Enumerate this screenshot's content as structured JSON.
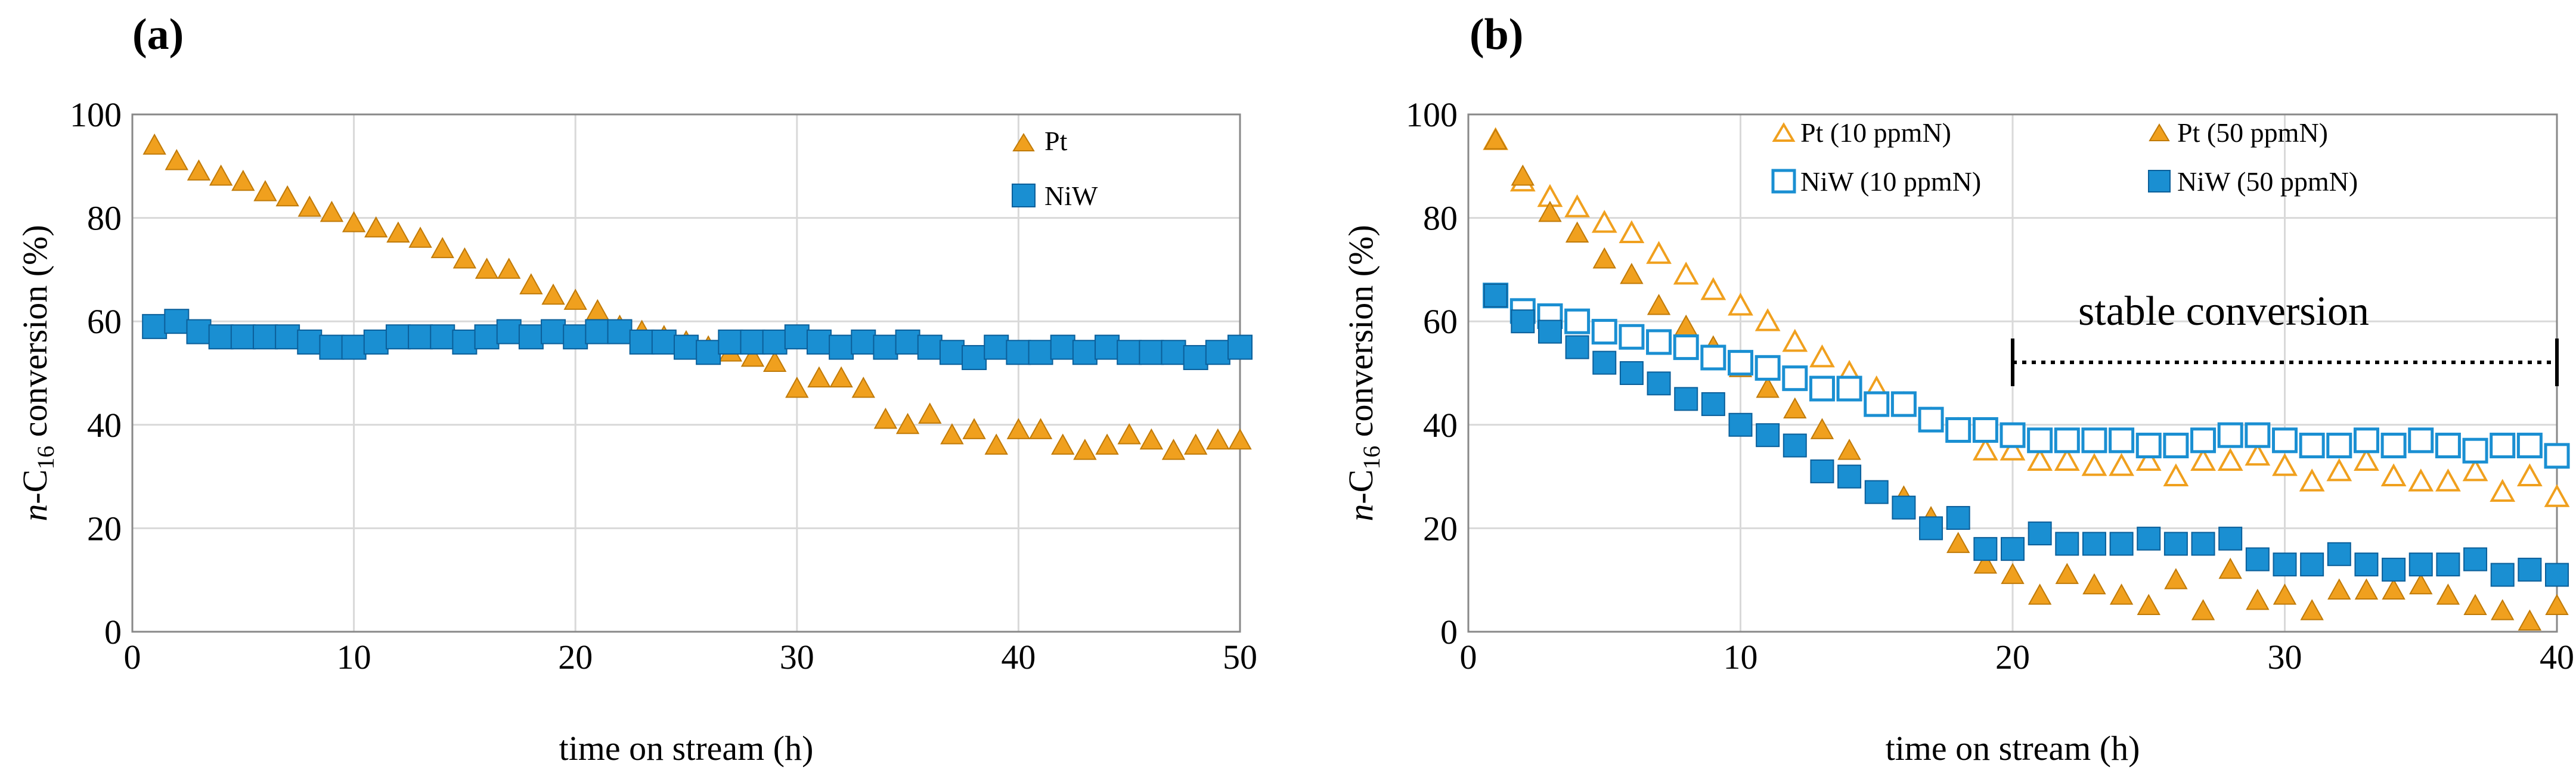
{
  "colors": {
    "pt": "#F0A01E",
    "pt_stroke": "#C07A08",
    "niw": "#1A8FD2",
    "niw_stroke": "#0B5F9A",
    "grid": "#D9D9D9",
    "axis": "#888888"
  },
  "panel_a": {
    "panel_label": "(a)",
    "legend": [
      "Pt",
      "NiW"
    ]
  },
  "panel_b": {
    "panel_label": "(b)",
    "legend": [
      "Pt (10 ppmN)",
      "Pt (50 ppmN)",
      "NiW (10 ppmN)",
      "NiW (50 ppmN)"
    ],
    "annotation": "stable conversion",
    "annotation_range": [
      20,
      40
    ]
  },
  "chart_data": [
    {
      "type": "scatter",
      "title": "(a)",
      "xlabel": "time on stream (h)",
      "ylabel_prefix": "n",
      "ylabel_main": "-C",
      "ylabel_sub": "16",
      "ylabel_rest": " conversion (%)",
      "xlim": [
        0,
        50
      ],
      "ylim": [
        0,
        100
      ],
      "xticks": [
        0,
        10,
        20,
        30,
        40,
        50
      ],
      "yticks": [
        0,
        20,
        40,
        60,
        80,
        100
      ],
      "grid": true,
      "legend_position": "top-right",
      "series": [
        {
          "name": "Pt",
          "marker": "triangle-filled",
          "x": [
            1,
            2,
            3,
            4,
            5,
            6,
            7,
            8,
            9,
            10,
            11,
            12,
            13,
            14,
            15,
            16,
            17,
            18,
            19,
            20,
            21,
            22,
            23,
            24,
            25,
            26,
            27,
            28,
            29,
            30,
            31,
            32,
            33,
            34,
            35,
            36,
            37,
            38,
            39,
            40,
            41,
            42,
            43,
            44,
            45,
            46,
            47,
            48,
            49,
            50
          ],
          "y": [
            94,
            91,
            89,
            88,
            87,
            85,
            84,
            82,
            81,
            79,
            78,
            77,
            76,
            74,
            72,
            70,
            70,
            67,
            65,
            64,
            62,
            59,
            58,
            57,
            56,
            55,
            54,
            53,
            52,
            47,
            49,
            49,
            47,
            41,
            40,
            42,
            38,
            39,
            36,
            39,
            39,
            36,
            35,
            36,
            38,
            37,
            35,
            36,
            37,
            37
          ]
        },
        {
          "name": "NiW",
          "marker": "square-filled",
          "x": [
            1,
            2,
            3,
            4,
            5,
            6,
            7,
            8,
            9,
            10,
            11,
            12,
            13,
            14,
            15,
            16,
            17,
            18,
            19,
            20,
            21,
            22,
            23,
            24,
            25,
            26,
            27,
            28,
            29,
            30,
            31,
            32,
            33,
            34,
            35,
            36,
            37,
            38,
            39,
            40,
            41,
            42,
            43,
            44,
            45,
            46,
            47,
            48,
            49,
            50
          ],
          "y": [
            59,
            60,
            58,
            57,
            57,
            57,
            57,
            56,
            55,
            55,
            56,
            57,
            57,
            57,
            56,
            57,
            58,
            57,
            58,
            57,
            58,
            58,
            56,
            56,
            55,
            54,
            56,
            56,
            56,
            57,
            56,
            55,
            56,
            55,
            56,
            55,
            54,
            53,
            55,
            54,
            54,
            55,
            54,
            55,
            54,
            54,
            54,
            53,
            54,
            55
          ]
        }
      ]
    },
    {
      "type": "scatter",
      "title": "(b)",
      "xlabel": "time on stream (h)",
      "ylabel_prefix": "n",
      "ylabel_main": "-C",
      "ylabel_sub": "16",
      "ylabel_rest": " conversion (%)",
      "xlim": [
        0,
        40
      ],
      "ylim": [
        0,
        100
      ],
      "xticks": [
        0,
        10,
        20,
        30,
        40
      ],
      "yticks": [
        0,
        20,
        40,
        60,
        80,
        100
      ],
      "grid": true,
      "legend_position": "top-right",
      "series": [
        {
          "name": "Pt (10 ppmN)",
          "marker": "triangle-open",
          "x": [
            1,
            2,
            3,
            4,
            5,
            6,
            7,
            8,
            9,
            10,
            11,
            12,
            13,
            14,
            15,
            16,
            17,
            18,
            19,
            20,
            21,
            22,
            23,
            24,
            25,
            26,
            27,
            28,
            29,
            30,
            31,
            32,
            33,
            34,
            35,
            36,
            37,
            38,
            39,
            40
          ],
          "y": [
            95,
            87,
            84,
            82,
            79,
            77,
            73,
            69,
            66,
            63,
            60,
            56,
            53,
            50,
            47,
            44,
            41,
            39,
            35,
            35,
            33,
            33,
            32,
            32,
            33,
            30,
            33,
            33,
            34,
            32,
            29,
            31,
            33,
            30,
            29,
            29,
            31,
            27,
            30,
            26
          ]
        },
        {
          "name": "Pt (50 ppmN)",
          "marker": "triangle-filled",
          "x": [
            1,
            2,
            3,
            4,
            5,
            6,
            7,
            8,
            9,
            10,
            11,
            12,
            13,
            14,
            15,
            16,
            17,
            18,
            19,
            20,
            21,
            22,
            23,
            24,
            25,
            26,
            27,
            28,
            29,
            30,
            31,
            32,
            33,
            34,
            35,
            36,
            37,
            38,
            39,
            40
          ],
          "y": [
            95,
            88,
            81,
            77,
            72,
            69,
            63,
            59,
            55,
            51,
            47,
            43,
            39,
            35,
            27,
            26,
            22,
            17,
            13,
            11,
            7,
            11,
            9,
            7,
            5,
            10,
            4,
            12,
            6,
            7,
            4,
            8,
            8,
            8,
            9,
            7,
            5,
            4,
            2,
            5
          ]
        },
        {
          "name": "NiW (10 ppmN)",
          "marker": "square-open",
          "x": [
            1,
            2,
            3,
            4,
            5,
            6,
            7,
            8,
            9,
            10,
            11,
            12,
            13,
            14,
            15,
            16,
            17,
            18,
            19,
            20,
            21,
            22,
            23,
            24,
            25,
            26,
            27,
            28,
            29,
            30,
            31,
            32,
            33,
            34,
            35,
            36,
            37,
            38,
            39,
            40
          ],
          "y": [
            65,
            62,
            61,
            60,
            58,
            57,
            56,
            55,
            53,
            52,
            51,
            49,
            47,
            47,
            44,
            44,
            41,
            39,
            39,
            38,
            37,
            37,
            37,
            37,
            36,
            36,
            37,
            38,
            38,
            37,
            36,
            36,
            37,
            36,
            37,
            36,
            35,
            36,
            36,
            34
          ]
        },
        {
          "name": "NiW (50 ppmN)",
          "marker": "square-filled",
          "x": [
            1,
            2,
            3,
            4,
            5,
            6,
            7,
            8,
            9,
            10,
            11,
            12,
            13,
            14,
            15,
            16,
            17,
            18,
            19,
            20,
            21,
            22,
            23,
            24,
            25,
            26,
            27,
            28,
            29,
            30,
            31,
            32,
            33,
            34,
            35,
            36,
            37,
            38,
            39,
            40
          ],
          "y": [
            65,
            60,
            58,
            55,
            52,
            50,
            48,
            45,
            44,
            40,
            38,
            36,
            31,
            30,
            27,
            24,
            20,
            22,
            16,
            16,
            19,
            17,
            17,
            17,
            18,
            17,
            17,
            18,
            14,
            13,
            13,
            15,
            13,
            12,
            13,
            13,
            14,
            11,
            12,
            11
          ]
        }
      ]
    }
  ]
}
